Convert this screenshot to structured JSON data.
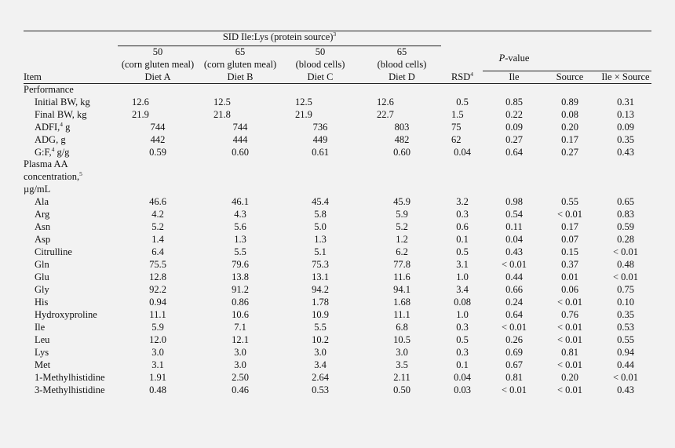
{
  "header": {
    "group_title": "SID Ile:Lys (protein source)",
    "group_title_sup": "3",
    "item": "Item",
    "rsd": "RSD",
    "rsd_sup": "4",
    "pvalue_p": "P",
    "pvalue_rest": "-value",
    "diets": [
      {
        "level": "50",
        "source": "(corn gluten meal)",
        "name": "Diet A"
      },
      {
        "level": "65",
        "source": "(corn gluten meal)",
        "name": "Diet B"
      },
      {
        "level": "50",
        "source": "(blood cells)",
        "name": "Diet C"
      },
      {
        "level": "65",
        "source": "(blood cells)",
        "name": "Diet D"
      }
    ],
    "pcols": [
      "Ile",
      "Source",
      "Ile × Source"
    ]
  },
  "sections": [
    {
      "title": "Performance"
    },
    {
      "title_lines": [
        "Plasma AA",
        "concentration,",
        "µg/mL"
      ],
      "title_sup": "5"
    }
  ],
  "rows": [
    {
      "label": "Initial BW, kg",
      "vals": [
        "12.6",
        "12.5",
        "12.5",
        "12.6",
        "0.5",
        "0.85",
        "0.89",
        "0.31"
      ]
    },
    {
      "label": "Final BW, kg",
      "vals": [
        "21.9",
        "21.8",
        "21.9",
        "22.7",
        "1.5",
        "0.22",
        "0.08",
        "0.13"
      ]
    },
    {
      "label": "ADFI,",
      "sup": "4",
      "suffix": " g",
      "vals": [
        "744",
        "744",
        "736",
        "803",
        "75",
        "0.09",
        "0.20",
        "0.09"
      ]
    },
    {
      "label": "ADG, g",
      "vals": [
        "442",
        "444",
        "449",
        "482",
        "62",
        "0.27",
        "0.17",
        "0.35"
      ]
    },
    {
      "label": "G:F,",
      "sup": "4",
      "suffix": " g/g",
      "vals": [
        "0.59",
        "0.60",
        "0.61",
        "0.60",
        "0.04",
        "0.64",
        "0.27",
        "0.43"
      ]
    },
    {
      "label": "Ala",
      "vals": [
        "46.6",
        "46.1",
        "45.4",
        "45.9",
        "3.2",
        "0.98",
        "0.55",
        "0.65"
      ]
    },
    {
      "label": "Arg",
      "vals": [
        "4.2",
        "4.3",
        "5.8",
        "5.9",
        "0.3",
        "0.54",
        "< 0.01",
        "0.83"
      ]
    },
    {
      "label": "Asn",
      "vals": [
        "5.2",
        "5.6",
        "5.0",
        "5.2",
        "0.6",
        "0.11",
        "0.17",
        "0.59"
      ]
    },
    {
      "label": "Asp",
      "vals": [
        "1.4",
        "1.3",
        "1.3",
        "1.2",
        "0.1",
        "0.04",
        "0.07",
        "0.28"
      ]
    },
    {
      "label": "Citrulline",
      "vals": [
        "6.4",
        "5.5",
        "5.1",
        "6.2",
        "0.5",
        "0.43",
        "0.15",
        "< 0.01"
      ]
    },
    {
      "label": "Gln",
      "vals": [
        "75.5",
        "79.6",
        "75.3",
        "77.8",
        "3.1",
        "< 0.01",
        "0.37",
        "0.48"
      ]
    },
    {
      "label": "Glu",
      "vals": [
        "12.8",
        "13.8",
        "13.1",
        "11.6",
        "1.0",
        "0.44",
        "0.01",
        "< 0.01"
      ]
    },
    {
      "label": "Gly",
      "vals": [
        "92.2",
        "91.2",
        "94.2",
        "94.1",
        "3.4",
        "0.66",
        "0.06",
        "0.75"
      ]
    },
    {
      "label": "His",
      "vals": [
        "0.94",
        "0.86",
        "1.78",
        "1.68",
        "0.08",
        "0.24",
        "< 0.01",
        "0.10"
      ]
    },
    {
      "label": "Hydroxyproline",
      "vals": [
        "11.1",
        "10.6",
        "10.9",
        "11.1",
        "1.0",
        "0.64",
        "0.76",
        "0.35"
      ]
    },
    {
      "label": "Ile",
      "vals": [
        "5.9",
        "7.1",
        "5.5",
        "6.8",
        "0.3",
        "< 0.01",
        "< 0.01",
        "0.53"
      ]
    },
    {
      "label": "Leu",
      "vals": [
        "12.0",
        "12.1",
        "10.2",
        "10.5",
        "0.5",
        "0.26",
        "< 0.01",
        "0.55"
      ]
    },
    {
      "label": "Lys",
      "vals": [
        "3.0",
        "3.0",
        "3.0",
        "3.0",
        "0.3",
        "0.69",
        "0.81",
        "0.94"
      ]
    },
    {
      "label": "Met",
      "vals": [
        "3.1",
        "3.0",
        "3.4",
        "3.5",
        "0.1",
        "0.67",
        "< 0.01",
        "0.44"
      ]
    },
    {
      "label": "1-Methylhistidine",
      "vals": [
        "1.91",
        "2.50",
        "2.64",
        "2.11",
        "0.04",
        "0.81",
        "0.20",
        "< 0.01"
      ]
    },
    {
      "label": "3-Methylhistidine",
      "vals": [
        "0.48",
        "0.46",
        "0.53",
        "0.50",
        "0.03",
        "< 0.01",
        "< 0.01",
        "0.43"
      ]
    }
  ]
}
